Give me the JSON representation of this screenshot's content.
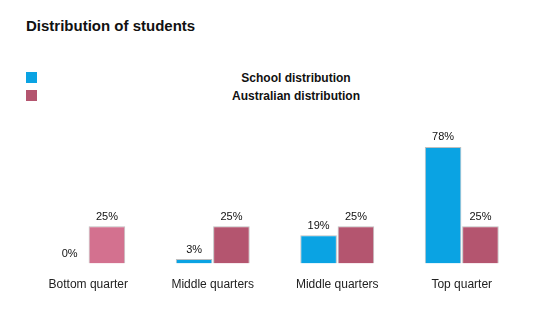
{
  "chart_data": {
    "type": "bar",
    "title": "Distribution of students",
    "categories": [
      "Bottom quarter",
      "Middle quarters",
      "Middle quarters",
      "Top quarter"
    ],
    "series": [
      {
        "name": "School distribution",
        "color": "#0aa3e3",
        "values": [
          0,
          3,
          19,
          78
        ],
        "value_labels": [
          "0%",
          "3%",
          "19%",
          "78%"
        ]
      },
      {
        "name": "Australian distribution",
        "color": "#b4556f",
        "colors": [
          "#d3718f",
          "#b4556f",
          "#b4556f",
          "#b4556f"
        ],
        "values": [
          25,
          25,
          25,
          25
        ],
        "value_labels": [
          "25%",
          "25%",
          "25%",
          "25%"
        ]
      }
    ],
    "ylim": [
      0,
      100
    ],
    "grid": false,
    "data_labels": true,
    "tick_labels": "x",
    "legend": "top"
  }
}
